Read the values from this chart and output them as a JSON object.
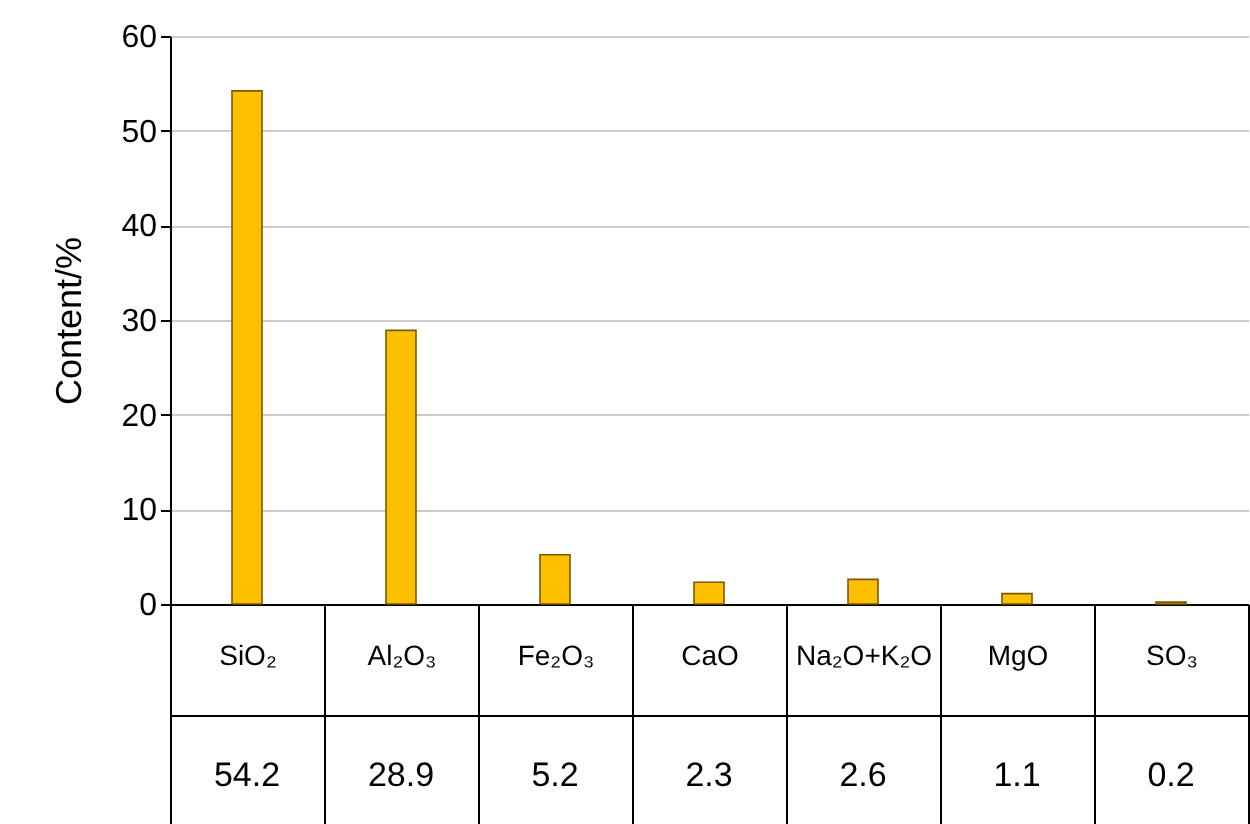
{
  "chart_data": {
    "type": "bar",
    "ylabel": "Content/%",
    "categories": [
      "SiO₂",
      "Al₂O₃",
      "Fe₂O₃",
      "CaO",
      "Na₂O+K₂O",
      "MgO",
      "SO₃"
    ],
    "values": [
      54.2,
      28.9,
      5.2,
      2.3,
      2.6,
      1.1,
      0.2
    ],
    "color": "#ffc000",
    "ylim": [
      0,
      60
    ],
    "yticks": [
      0,
      10,
      20,
      30,
      40,
      50,
      60
    ],
    "grid": "y",
    "data_labels": true
  }
}
